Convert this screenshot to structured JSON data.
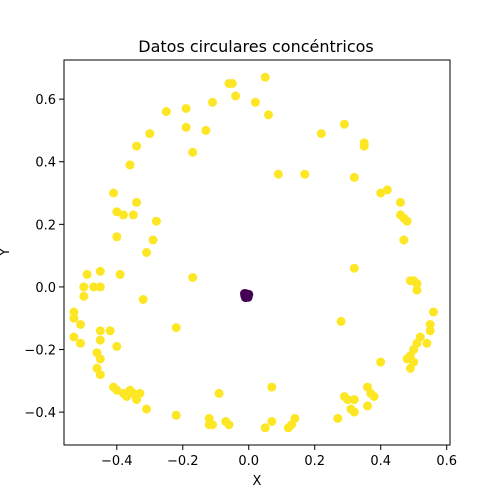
{
  "chart_data": {
    "type": "scatter",
    "title": "Datos circulares concéntricos",
    "xlabel": "X",
    "ylabel": "Y",
    "xlim": [
      -0.56,
      0.61
    ],
    "ylim": [
      -0.505,
      0.725
    ],
    "xticks": [
      -0.4,
      -0.2,
      0.0,
      0.2,
      0.4,
      0.6
    ],
    "xtick_labels": [
      "−0.4",
      "−0.2",
      "0.0",
      "0.2",
      "0.4",
      "0.6"
    ],
    "yticks": [
      -0.4,
      -0.2,
      0.0,
      0.2,
      0.4,
      0.6
    ],
    "ytick_labels": [
      "−0.4",
      "−0.2",
      "0.0",
      "0.2",
      "0.4",
      "0.6"
    ],
    "grid": false,
    "series": [
      {
        "color": "#fde725",
        "points": [
          [
            0.05,
            0.67
          ],
          [
            -0.06,
            0.65
          ],
          [
            -0.05,
            0.65
          ],
          [
            -0.04,
            0.61
          ],
          [
            0.02,
            0.59
          ],
          [
            0.06,
            0.55
          ],
          [
            -0.11,
            0.59
          ],
          [
            -0.19,
            0.57
          ],
          [
            -0.25,
            0.56
          ],
          [
            -0.13,
            0.5
          ],
          [
            -0.19,
            0.51
          ],
          [
            -0.3,
            0.49
          ],
          [
            -0.34,
            0.45
          ],
          [
            -0.17,
            0.43
          ],
          [
            -0.36,
            0.39
          ],
          [
            0.09,
            0.36
          ],
          [
            0.17,
            0.36
          ],
          [
            0.29,
            0.52
          ],
          [
            0.22,
            0.49
          ],
          [
            0.35,
            0.46
          ],
          [
            0.35,
            0.45
          ],
          [
            0.32,
            0.35
          ],
          [
            -0.41,
            0.3
          ],
          [
            -0.34,
            0.27
          ],
          [
            -0.4,
            0.24
          ],
          [
            -0.38,
            0.23
          ],
          [
            -0.35,
            0.23
          ],
          [
            -0.28,
            0.21
          ],
          [
            -0.4,
            0.16
          ],
          [
            -0.29,
            0.15
          ],
          [
            -0.31,
            0.11
          ],
          [
            -0.39,
            0.04
          ],
          [
            -0.45,
            0.05
          ],
          [
            -0.49,
            0.04
          ],
          [
            -0.5,
            0.0
          ],
          [
            -0.45,
            0.0
          ],
          [
            -0.47,
            0.0
          ],
          [
            -0.5,
            -0.03
          ],
          [
            -0.17,
            0.03
          ],
          [
            -0.32,
            -0.04
          ],
          [
            0.4,
            0.3
          ],
          [
            0.42,
            0.31
          ],
          [
            0.46,
            0.27
          ],
          [
            0.46,
            0.23
          ],
          [
            0.47,
            0.22
          ],
          [
            0.48,
            0.21
          ],
          [
            0.47,
            0.15
          ],
          [
            0.32,
            0.06
          ],
          [
            0.49,
            0.02
          ],
          [
            0.5,
            0.02
          ],
          [
            0.51,
            0.01
          ],
          [
            0.51,
            -0.01
          ],
          [
            -0.53,
            -0.08
          ],
          [
            -0.53,
            -0.1
          ],
          [
            -0.51,
            -0.12
          ],
          [
            -0.45,
            -0.14
          ],
          [
            -0.53,
            -0.16
          ],
          [
            -0.51,
            -0.18
          ],
          [
            -0.45,
            -0.17
          ],
          [
            -0.42,
            -0.14
          ],
          [
            -0.4,
            -0.19
          ],
          [
            -0.46,
            -0.21
          ],
          [
            -0.45,
            -0.23
          ],
          [
            -0.46,
            -0.26
          ],
          [
            -0.45,
            -0.28
          ],
          [
            -0.41,
            -0.32
          ],
          [
            -0.22,
            -0.13
          ],
          [
            0.28,
            -0.11
          ],
          [
            0.56,
            -0.08
          ],
          [
            0.55,
            -0.12
          ],
          [
            0.55,
            -0.14
          ],
          [
            0.52,
            -0.16
          ],
          [
            0.54,
            -0.18
          ],
          [
            0.51,
            -0.18
          ],
          [
            0.5,
            -0.2
          ],
          [
            0.49,
            -0.22
          ],
          [
            0.48,
            -0.23
          ],
          [
            0.5,
            -0.24
          ],
          [
            0.49,
            -0.26
          ],
          [
            0.4,
            -0.24
          ],
          [
            -0.4,
            -0.33
          ],
          [
            -0.38,
            -0.34
          ],
          [
            -0.36,
            -0.33
          ],
          [
            -0.35,
            -0.34
          ],
          [
            -0.33,
            -0.34
          ],
          [
            -0.37,
            -0.35
          ],
          [
            -0.34,
            -0.36
          ],
          [
            -0.31,
            -0.39
          ],
          [
            -0.22,
            -0.41
          ],
          [
            -0.09,
            -0.34
          ],
          [
            -0.12,
            -0.42
          ],
          [
            -0.12,
            -0.44
          ],
          [
            -0.11,
            -0.44
          ],
          [
            -0.07,
            -0.43
          ],
          [
            -0.06,
            -0.44
          ],
          [
            0.07,
            -0.32
          ],
          [
            0.07,
            -0.43
          ],
          [
            0.05,
            -0.45
          ],
          [
            0.12,
            -0.45
          ],
          [
            0.13,
            -0.44
          ],
          [
            0.14,
            -0.42
          ],
          [
            0.27,
            -0.42
          ],
          [
            0.29,
            -0.35
          ],
          [
            0.3,
            -0.36
          ],
          [
            0.32,
            -0.36
          ],
          [
            0.31,
            -0.39
          ],
          [
            0.32,
            -0.4
          ],
          [
            0.36,
            -0.32
          ],
          [
            0.37,
            -0.34
          ],
          [
            0.36,
            -0.38
          ],
          [
            0.38,
            -0.35
          ]
        ]
      },
      {
        "color": "#440154",
        "points": [
          [
            -0.008,
            -0.022
          ],
          [
            -0.004,
            -0.026
          ],
          [
            -0.012,
            -0.028
          ],
          [
            -0.006,
            -0.031
          ],
          [
            0.0,
            -0.024
          ],
          [
            -0.01,
            -0.034
          ],
          [
            -0.002,
            -0.033
          ],
          [
            -0.013,
            -0.021
          ]
        ]
      }
    ]
  }
}
